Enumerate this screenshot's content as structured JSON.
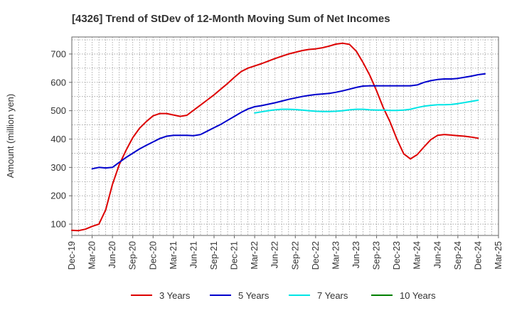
{
  "chart_data": {
    "type": "line",
    "title": "[4326]  Trend of StDev of 12-Month Moving Sum of Net Incomes",
    "ylabel": "Amount (million yen)",
    "xlabel": "",
    "ylim": [
      60,
      760
    ],
    "yticks": [
      100,
      200,
      300,
      400,
      500,
      600,
      700
    ],
    "xticks": [
      "Dec-19",
      "Mar-20",
      "Jun-20",
      "Sep-20",
      "Dec-20",
      "Mar-21",
      "Jun-21",
      "Sep-21",
      "Dec-21",
      "Mar-22",
      "Jun-22",
      "Sep-22",
      "Dec-22",
      "Mar-23",
      "Jun-23",
      "Sep-23",
      "Dec-23",
      "Mar-24",
      "Jun-24",
      "Sep-24",
      "Dec-24",
      "Mar-25"
    ],
    "grid": true,
    "legend_position": "bottom",
    "series": [
      {
        "name": "3 Years",
        "color": "#dd0000",
        "start_month_index": 0,
        "values": [
          78,
          77,
          82,
          92,
          100,
          150,
          240,
          310,
          360,
          405,
          438,
          462,
          482,
          490,
          490,
          485,
          480,
          484,
          502,
          520,
          538,
          556,
          576,
          596,
          618,
          638,
          650,
          658,
          666,
          675,
          684,
          692,
          700,
          706,
          712,
          716,
          718,
          722,
          728,
          735,
          738,
          734,
          710,
          670,
          625,
          570,
          510,
          460,
          400,
          348,
          330,
          345,
          372,
          398,
          413,
          416,
          414,
          412,
          410,
          407,
          403
        ]
      },
      {
        "name": "5 Years",
        "color": "#0000cc",
        "start_month_index": 3,
        "values": [
          295,
          300,
          298,
          300,
          318,
          335,
          350,
          365,
          378,
          390,
          402,
          410,
          413,
          413,
          413,
          412,
          416,
          428,
          440,
          452,
          466,
          480,
          494,
          506,
          514,
          518,
          523,
          528,
          534,
          540,
          545,
          550,
          554,
          557,
          559,
          561,
          565,
          570,
          576,
          582,
          587,
          588,
          588,
          588,
          588,
          588,
          588,
          588,
          591,
          600,
          606,
          610,
          612,
          612,
          614,
          618,
          622,
          627,
          630
        ]
      },
      {
        "name": "7 Years",
        "color": "#00e5e5",
        "start_month_index": 27,
        "values": [
          492,
          496,
          500,
          503,
          505,
          505,
          504,
          502,
          500,
          498,
          497,
          497,
          498,
          500,
          503,
          505,
          505,
          503,
          502,
          502,
          501,
          501,
          502,
          505,
          511,
          516,
          519,
          521,
          521,
          522,
          525,
          529,
          533,
          537
        ]
      },
      {
        "name": "10 Years",
        "color": "#008000",
        "start_month_index": 0,
        "values": []
      }
    ]
  }
}
